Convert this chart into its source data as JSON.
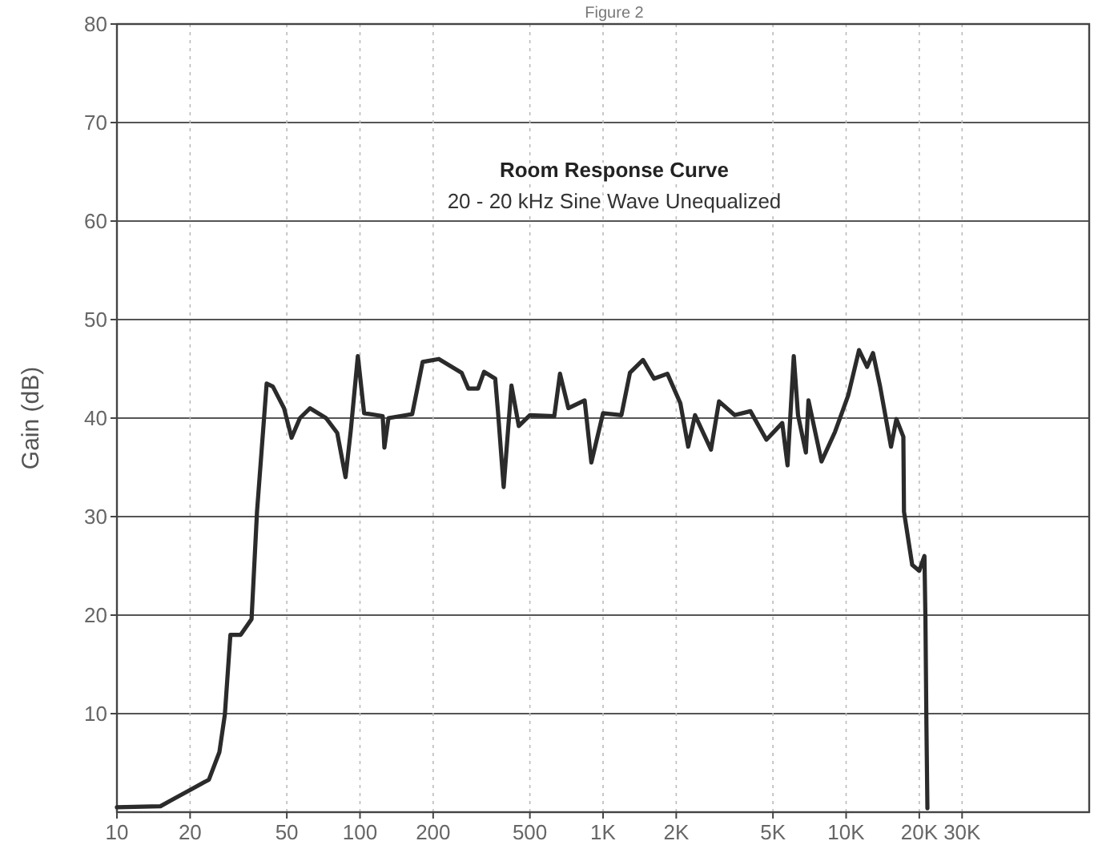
{
  "chart_data": {
    "type": "line",
    "title": "Room Response Curve",
    "subtitle": "20 - 20 kHz Sine Wave Unequalized",
    "ylabel": "Gain (dB)",
    "annotations": [
      "Figure 2"
    ],
    "log": "x",
    "grid": true,
    "xlim": [
      10,
      100000
    ],
    "ylim": [
      0,
      80
    ],
    "xticks": [
      10,
      20,
      50,
      100,
      200,
      500,
      {
        "value": 1000,
        "label": "1K"
      },
      {
        "value": 2000,
        "label": "2K"
      },
      {
        "value": 5000,
        "label": "5K"
      },
      {
        "value": 10000,
        "label": "10K"
      },
      {
        "value": 20000,
        "label": "20K"
      },
      {
        "value": 30000,
        "label": "30K"
      }
    ],
    "yticks": [
      10,
      20,
      30,
      40,
      50,
      60,
      70,
      80
    ],
    "series": [
      {
        "color": "#2b2b2b",
        "x": [
          10,
          15.1,
          16.7,
          20.5,
          23.9,
          26.4,
          27.8,
          29.3,
          32.3,
          35.8,
          37.7,
          41.3,
          43.8,
          48.7,
          52.3,
          56.6,
          62.3,
          72.5,
          80.6,
          87.2,
          91.6,
          98,
          104,
          124,
          126,
          131,
          164,
          181,
          211,
          262,
          279,
          306,
          324,
          360,
          370,
          390,
          420,
          450,
          500,
          630,
          665,
          720,
          840,
          895,
          1000,
          1190,
          1290,
          1460,
          1620,
          1840,
          2080,
          2240,
          2390,
          2780,
          3000,
          3480,
          4040,
          4700,
          5460,
          5740,
          6090,
          6340,
          6830,
          7000,
          7920,
          9000,
          10200,
          11300,
          12200,
          12900,
          13800,
          15300,
          16100,
          17200,
          17300,
          18700,
          20000,
          21000,
          21200,
          21400,
          21600
        ],
        "values": [
          0.5,
          0.6,
          1.2,
          2.4,
          3.3,
          6.1,
          9.9,
          18,
          18,
          19.6,
          30.5,
          43.5,
          43.2,
          41,
          38,
          40,
          41,
          40,
          38.5,
          34,
          38.7,
          46.3,
          40.5,
          40.2,
          37,
          40,
          40.4,
          45.7,
          46,
          44.6,
          43,
          43,
          44.7,
          44,
          40.5,
          33,
          43.3,
          39.2,
          40.3,
          40.2,
          44.5,
          41,
          41.8,
          35.5,
          40.5,
          40.3,
          44.6,
          45.9,
          44,
          44.5,
          41.5,
          37.1,
          40.3,
          36.8,
          41.7,
          40.3,
          40.7,
          37.8,
          39.5,
          35.2,
          46.3,
          40.3,
          36.5,
          41.8,
          35.6,
          38.6,
          42.3,
          46.9,
          45.2,
          46.6,
          43.2,
          37.1,
          39.9,
          38.1,
          30.5,
          25.1,
          24.5,
          26,
          19.6,
          8.8,
          0.4
        ]
      }
    ]
  }
}
